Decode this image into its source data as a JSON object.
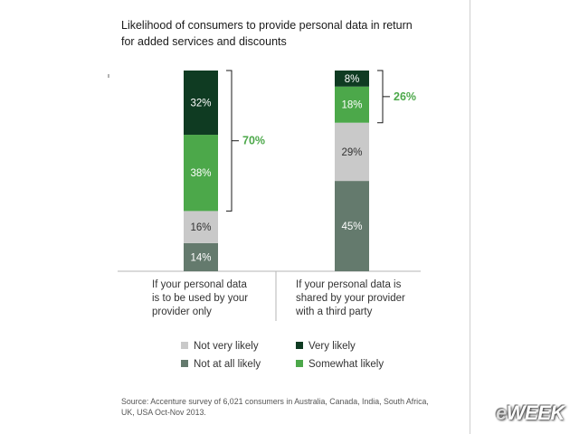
{
  "title": "Likelihood of consumers to provide personal data in return for added services and discounts",
  "chart_data": {
    "type": "bar",
    "stacked": true,
    "categories": [
      "If your personal data is to be used by your provider only",
      "If your personal data is shared by your provider with a third party"
    ],
    "series": [
      {
        "name": "Not at all likely",
        "values": [
          14,
          45
        ],
        "labels": [
          "14%",
          "45%"
        ],
        "color": "#647a6d",
        "label_color": "#ffffff"
      },
      {
        "name": "Not very likely",
        "values": [
          16,
          29
        ],
        "labels": [
          "16%",
          "29%"
        ],
        "color": "#c9c9c9",
        "label_color": "#333333"
      },
      {
        "name": "Somewhat likely",
        "values": [
          38,
          18
        ],
        "labels": [
          "38%",
          "18%"
        ],
        "color": "#4ca84a",
        "label_color": "#ffffff"
      },
      {
        "name": "Very likely",
        "values": [
          32,
          8
        ],
        "labels": [
          "32%",
          "8%"
        ],
        "color": "#0f3b22",
        "label_color": "#ffffff"
      }
    ],
    "annotations": [
      {
        "category": 0,
        "label": "70%",
        "color": "#4ca84a"
      },
      {
        "category": 1,
        "label": "26%",
        "color": "#4ca84a"
      }
    ],
    "ylim": [
      0,
      100
    ],
    "grid": false,
    "legend_position": "bottom"
  },
  "category_lines": [
    [
      "If your personal data",
      "is to be used by your",
      "provider only"
    ],
    [
      "If your personal data is",
      "shared by your provider",
      "with a third party"
    ]
  ],
  "legend": {
    "not_very_likely": "Not very likely",
    "very_likely": "Very likely",
    "not_at_all_likely": "Not at all likely",
    "somewhat_likely": "Somewhat likely"
  },
  "source": "Source: Accenture survey of 6,021 consumers in Australia, Canada, India, South Africa, UK, USA Oct-Nov 2013.",
  "logo": {
    "prefix": "e",
    "rest": "WEEK"
  }
}
